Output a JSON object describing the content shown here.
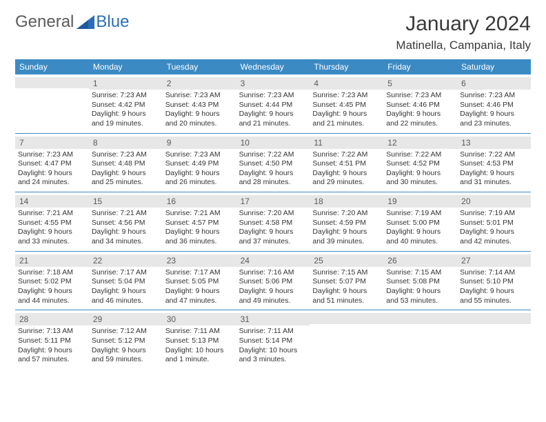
{
  "logo": {
    "text1": "General",
    "text2": "Blue"
  },
  "title": "January 2024",
  "subtitle": "Matinella, Campania, Italy",
  "colors": {
    "header_bg": "#3b8ac4",
    "header_fg": "#ffffff",
    "daynum_bg": "#e7e7e7",
    "daynum_fg": "#5a5a5a",
    "divider": "#3b8ac4",
    "logo_gray": "#5a5a5a",
    "logo_blue": "#2a6db5"
  },
  "fontsize": {
    "title": 30,
    "subtitle": 17,
    "header": 12,
    "daynum": 12,
    "details": 10.5
  },
  "day_names": [
    "Sunday",
    "Monday",
    "Tuesday",
    "Wednesday",
    "Thursday",
    "Friday",
    "Saturday"
  ],
  "weeks": [
    [
      {
        "n": "",
        "d": []
      },
      {
        "n": "1",
        "d": [
          "Sunrise: 7:23 AM",
          "Sunset: 4:42 PM",
          "Daylight: 9 hours",
          "and 19 minutes."
        ]
      },
      {
        "n": "2",
        "d": [
          "Sunrise: 7:23 AM",
          "Sunset: 4:43 PM",
          "Daylight: 9 hours",
          "and 20 minutes."
        ]
      },
      {
        "n": "3",
        "d": [
          "Sunrise: 7:23 AM",
          "Sunset: 4:44 PM",
          "Daylight: 9 hours",
          "and 21 minutes."
        ]
      },
      {
        "n": "4",
        "d": [
          "Sunrise: 7:23 AM",
          "Sunset: 4:45 PM",
          "Daylight: 9 hours",
          "and 21 minutes."
        ]
      },
      {
        "n": "5",
        "d": [
          "Sunrise: 7:23 AM",
          "Sunset: 4:46 PM",
          "Daylight: 9 hours",
          "and 22 minutes."
        ]
      },
      {
        "n": "6",
        "d": [
          "Sunrise: 7:23 AM",
          "Sunset: 4:46 PM",
          "Daylight: 9 hours",
          "and 23 minutes."
        ]
      }
    ],
    [
      {
        "n": "7",
        "d": [
          "Sunrise: 7:23 AM",
          "Sunset: 4:47 PM",
          "Daylight: 9 hours",
          "and 24 minutes."
        ]
      },
      {
        "n": "8",
        "d": [
          "Sunrise: 7:23 AM",
          "Sunset: 4:48 PM",
          "Daylight: 9 hours",
          "and 25 minutes."
        ]
      },
      {
        "n": "9",
        "d": [
          "Sunrise: 7:23 AM",
          "Sunset: 4:49 PM",
          "Daylight: 9 hours",
          "and 26 minutes."
        ]
      },
      {
        "n": "10",
        "d": [
          "Sunrise: 7:22 AM",
          "Sunset: 4:50 PM",
          "Daylight: 9 hours",
          "and 28 minutes."
        ]
      },
      {
        "n": "11",
        "d": [
          "Sunrise: 7:22 AM",
          "Sunset: 4:51 PM",
          "Daylight: 9 hours",
          "and 29 minutes."
        ]
      },
      {
        "n": "12",
        "d": [
          "Sunrise: 7:22 AM",
          "Sunset: 4:52 PM",
          "Daylight: 9 hours",
          "and 30 minutes."
        ]
      },
      {
        "n": "13",
        "d": [
          "Sunrise: 7:22 AM",
          "Sunset: 4:53 PM",
          "Daylight: 9 hours",
          "and 31 minutes."
        ]
      }
    ],
    [
      {
        "n": "14",
        "d": [
          "Sunrise: 7:21 AM",
          "Sunset: 4:55 PM",
          "Daylight: 9 hours",
          "and 33 minutes."
        ]
      },
      {
        "n": "15",
        "d": [
          "Sunrise: 7:21 AM",
          "Sunset: 4:56 PM",
          "Daylight: 9 hours",
          "and 34 minutes."
        ]
      },
      {
        "n": "16",
        "d": [
          "Sunrise: 7:21 AM",
          "Sunset: 4:57 PM",
          "Daylight: 9 hours",
          "and 36 minutes."
        ]
      },
      {
        "n": "17",
        "d": [
          "Sunrise: 7:20 AM",
          "Sunset: 4:58 PM",
          "Daylight: 9 hours",
          "and 37 minutes."
        ]
      },
      {
        "n": "18",
        "d": [
          "Sunrise: 7:20 AM",
          "Sunset: 4:59 PM",
          "Daylight: 9 hours",
          "and 39 minutes."
        ]
      },
      {
        "n": "19",
        "d": [
          "Sunrise: 7:19 AM",
          "Sunset: 5:00 PM",
          "Daylight: 9 hours",
          "and 40 minutes."
        ]
      },
      {
        "n": "20",
        "d": [
          "Sunrise: 7:19 AM",
          "Sunset: 5:01 PM",
          "Daylight: 9 hours",
          "and 42 minutes."
        ]
      }
    ],
    [
      {
        "n": "21",
        "d": [
          "Sunrise: 7:18 AM",
          "Sunset: 5:02 PM",
          "Daylight: 9 hours",
          "and 44 minutes."
        ]
      },
      {
        "n": "22",
        "d": [
          "Sunrise: 7:17 AM",
          "Sunset: 5:04 PM",
          "Daylight: 9 hours",
          "and 46 minutes."
        ]
      },
      {
        "n": "23",
        "d": [
          "Sunrise: 7:17 AM",
          "Sunset: 5:05 PM",
          "Daylight: 9 hours",
          "and 47 minutes."
        ]
      },
      {
        "n": "24",
        "d": [
          "Sunrise: 7:16 AM",
          "Sunset: 5:06 PM",
          "Daylight: 9 hours",
          "and 49 minutes."
        ]
      },
      {
        "n": "25",
        "d": [
          "Sunrise: 7:15 AM",
          "Sunset: 5:07 PM",
          "Daylight: 9 hours",
          "and 51 minutes."
        ]
      },
      {
        "n": "26",
        "d": [
          "Sunrise: 7:15 AM",
          "Sunset: 5:08 PM",
          "Daylight: 9 hours",
          "and 53 minutes."
        ]
      },
      {
        "n": "27",
        "d": [
          "Sunrise: 7:14 AM",
          "Sunset: 5:10 PM",
          "Daylight: 9 hours",
          "and 55 minutes."
        ]
      }
    ],
    [
      {
        "n": "28",
        "d": [
          "Sunrise: 7:13 AM",
          "Sunset: 5:11 PM",
          "Daylight: 9 hours",
          "and 57 minutes."
        ]
      },
      {
        "n": "29",
        "d": [
          "Sunrise: 7:12 AM",
          "Sunset: 5:12 PM",
          "Daylight: 9 hours",
          "and 59 minutes."
        ]
      },
      {
        "n": "30",
        "d": [
          "Sunrise: 7:11 AM",
          "Sunset: 5:13 PM",
          "Daylight: 10 hours",
          "and 1 minute."
        ]
      },
      {
        "n": "31",
        "d": [
          "Sunrise: 7:11 AM",
          "Sunset: 5:14 PM",
          "Daylight: 10 hours",
          "and 3 minutes."
        ]
      },
      {
        "n": "",
        "d": []
      },
      {
        "n": "",
        "d": []
      },
      {
        "n": "",
        "d": []
      }
    ]
  ]
}
